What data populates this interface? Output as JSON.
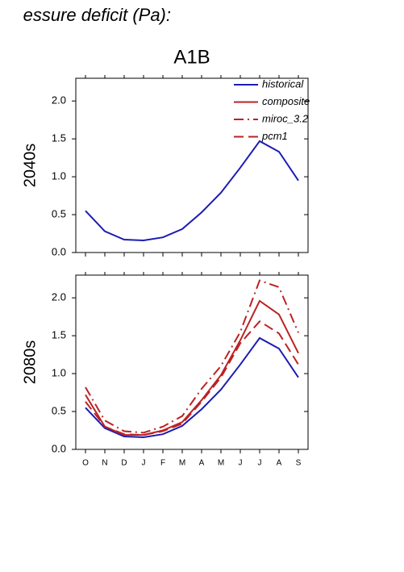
{
  "chart_data": [
    {
      "type": "line",
      "title": "essure deficit (Pa):",
      "subtitle": "A1B",
      "ylabel": "2040s",
      "ylim": [
        0,
        2.3
      ],
      "yticks": [
        {
          "value": 0,
          "label": "0.0"
        },
        {
          "value": 0.5,
          "label": "0.5"
        },
        {
          "value": 1,
          "label": "1.0"
        },
        {
          "value": 1.5,
          "label": "1.5"
        },
        {
          "value": 2,
          "label": "2.0"
        }
      ],
      "series": [
        {
          "name": "historical",
          "color": "#1c1cb4",
          "dash": "solid",
          "values": [
            0.55,
            0.28,
            0.17,
            0.16,
            0.2,
            0.31,
            0.53,
            0.79,
            1.12,
            1.47,
            1.33,
            0.95
          ]
        }
      ]
    },
    {
      "type": "line",
      "ylabel": "2080s",
      "categories": [
        "O",
        "N",
        "D",
        "J",
        "F",
        "M",
        "A",
        "M",
        "J",
        "J",
        "A",
        "S"
      ],
      "ylim": [
        0,
        2.3
      ],
      "yticks": [
        {
          "value": 0,
          "label": "0.0"
        },
        {
          "value": 0.5,
          "label": "0.5"
        },
        {
          "value": 1,
          "label": "1.0"
        },
        {
          "value": 1.5,
          "label": "1.5"
        },
        {
          "value": 2,
          "label": "2.0"
        }
      ],
      "series": [
        {
          "name": "historical",
          "color": "#1c1cb4",
          "dash": "solid",
          "values": [
            0.55,
            0.28,
            0.17,
            0.16,
            0.2,
            0.31,
            0.53,
            0.79,
            1.12,
            1.47,
            1.33,
            0.95
          ]
        },
        {
          "name": "composite",
          "color": "#bb2222",
          "dash": "solid",
          "values": [
            0.72,
            0.3,
            0.19,
            0.19,
            0.25,
            0.36,
            0.65,
            0.98,
            1.44,
            1.96,
            1.78,
            1.27
          ]
        },
        {
          "name": "miroc_3.2",
          "color": "#bb2222",
          "dash": "dashdot",
          "values": [
            0.82,
            0.38,
            0.24,
            0.22,
            0.3,
            0.44,
            0.8,
            1.1,
            1.55,
            2.23,
            2.14,
            1.54
          ]
        },
        {
          "name": "pcm1",
          "color": "#bb2222",
          "dash": "dashed",
          "values": [
            0.63,
            0.3,
            0.2,
            0.19,
            0.24,
            0.34,
            0.63,
            0.95,
            1.4,
            1.69,
            1.53,
            1.12
          ]
        }
      ]
    }
  ]
}
